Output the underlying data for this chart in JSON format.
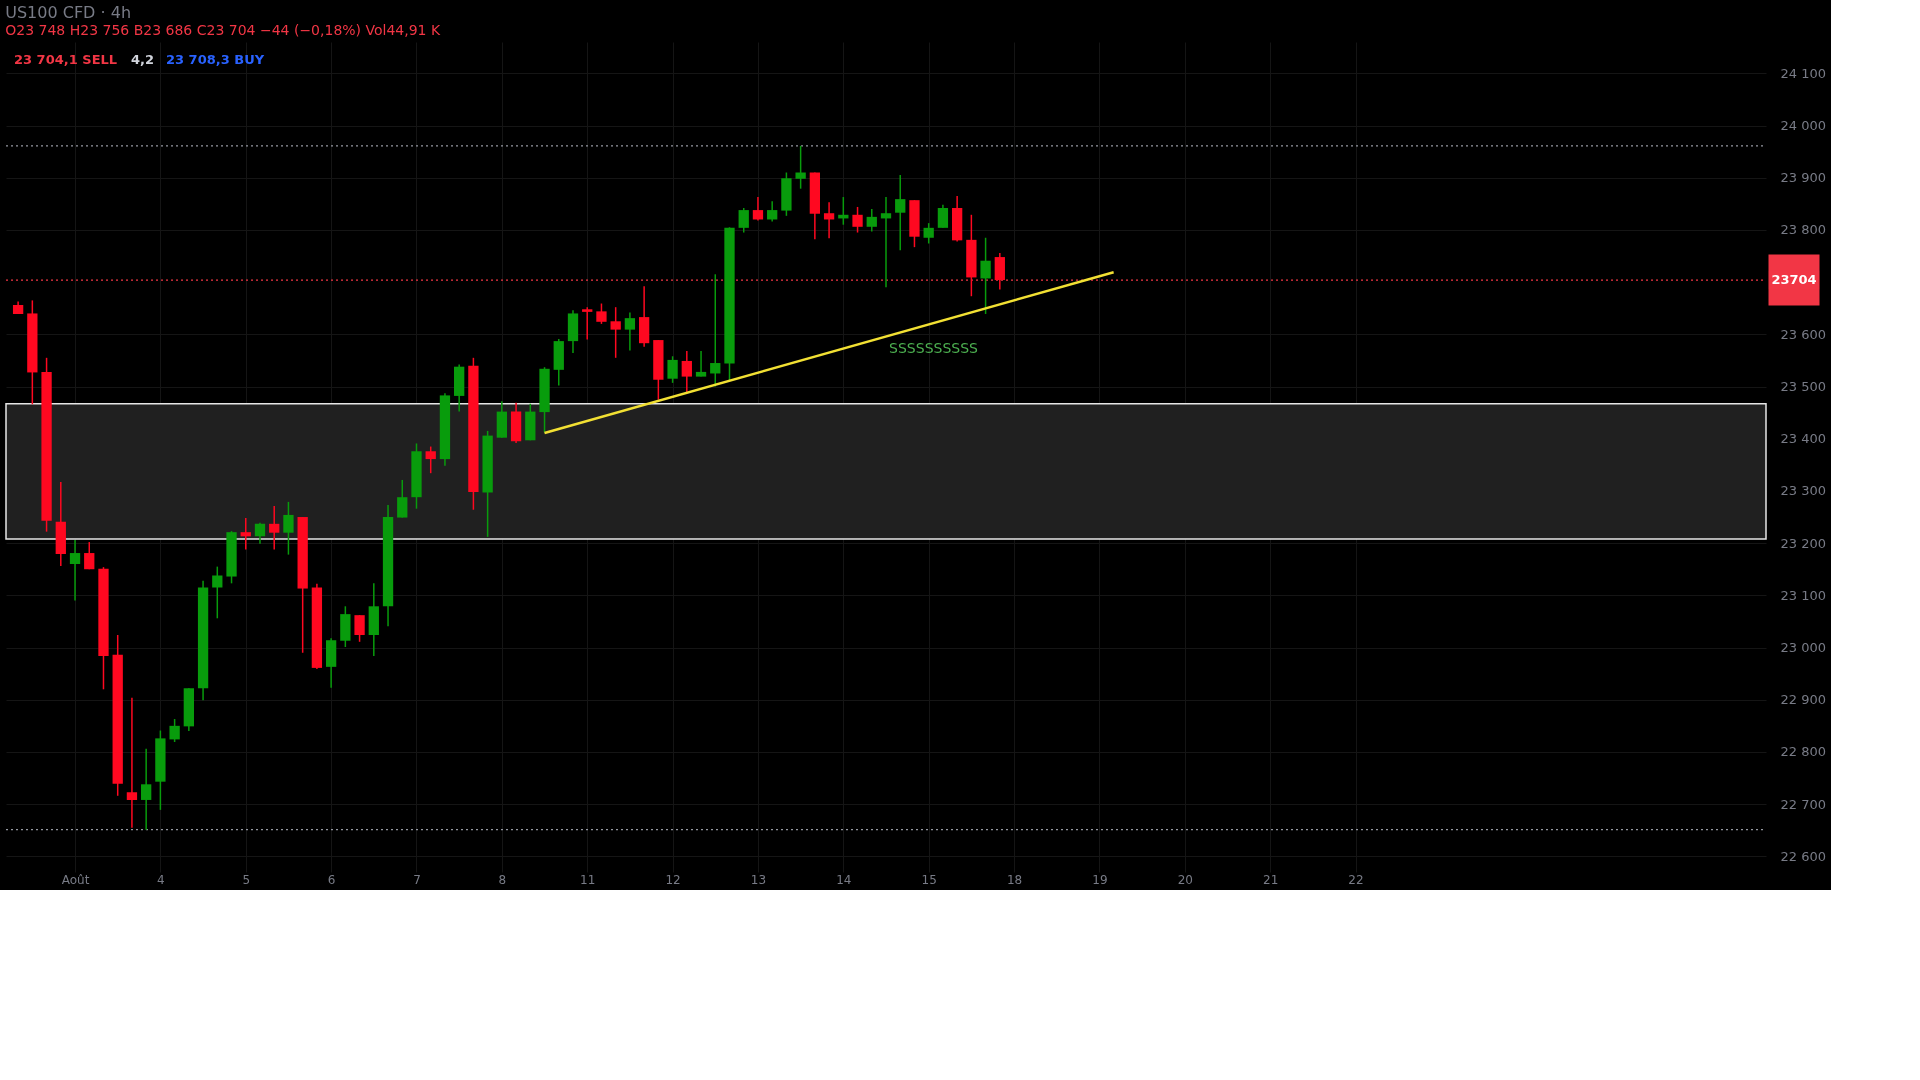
{
  "chart_data": {
    "type": "candlestick",
    "title": "US100 CFD · 4h",
    "subtitle": "O23 748  H23 756  B23 686  C23 704  −44 (−0,18%)  Vol44,91 K",
    "categories": [
      null,
      null,
      null,
      null,
      "Août",
      null,
      null,
      null,
      null,
      null,
      "4",
      null,
      null,
      null,
      null,
      null,
      "5",
      null,
      null,
      null,
      null,
      null,
      "6",
      null,
      null,
      null,
      null,
      null,
      "7",
      null,
      null,
      null,
      null,
      null,
      "8",
      null,
      null,
      null,
      null,
      null,
      "11",
      null,
      null,
      null,
      null,
      null,
      "12",
      null,
      null,
      null,
      null,
      null,
      "13",
      null,
      null,
      null,
      null,
      null,
      "14",
      null,
      null,
      null,
      null,
      null,
      "15",
      null,
      null,
      null,
      null,
      null,
      "18",
      null,
      null,
      null,
      null,
      null,
      "19",
      null,
      null,
      null,
      null,
      null,
      "20",
      null,
      null,
      null,
      null,
      null,
      "21",
      null,
      null,
      null,
      null,
      null,
      "22",
      null,
      null,
      null,
      null,
      null,
      null,
      null,
      null,
      null,
      null,
      null,
      null,
      null,
      null,
      null,
      null,
      null,
      null,
      null,
      null,
      null,
      null,
      null,
      null,
      null,
      null,
      null,
      null
    ],
    "ohlc": [
      [
        23656,
        23663,
        23639,
        23639
      ],
      [
        23640,
        23665,
        23466,
        23527
      ],
      [
        23528,
        23555,
        23222,
        23243
      ],
      [
        23241,
        23317,
        23156,
        23179
      ],
      [
        23160,
        23206,
        23090,
        23181
      ],
      [
        23181,
        23202,
        23150,
        23150
      ],
      [
        23151,
        23154,
        22920,
        22984
      ],
      [
        22986,
        23024,
        22716,
        22739
      ],
      [
        22723,
        22904,
        22655,
        22708
      ],
      [
        22708,
        22806,
        22651,
        22738
      ],
      [
        22743,
        22841,
        22689,
        22826
      ],
      [
        22824,
        22863,
        22819,
        22850
      ],
      [
        22849,
        22922,
        22840,
        22922
      ],
      [
        22922,
        23128,
        22899,
        23115
      ],
      [
        23115,
        23155,
        23056,
        23138
      ],
      [
        23136,
        23223,
        23123,
        23221
      ],
      [
        23221,
        23248,
        23188,
        23213
      ],
      [
        23213,
        23239,
        23199,
        23237
      ],
      [
        23237,
        23271,
        23188,
        23220
      ],
      [
        23220,
        23279,
        23178,
        23254
      ],
      [
        23250,
        23250,
        22990,
        23113
      ],
      [
        23115,
        23122,
        22959,
        22961
      ],
      [
        22963,
        23018,
        22923,
        23014
      ],
      [
        23013,
        23079,
        23001,
        23064
      ],
      [
        23062,
        23062,
        23011,
        23024
      ],
      [
        23024,
        23123,
        22984,
        23079
      ],
      [
        23079,
        23273,
        23041,
        23250
      ],
      [
        23249,
        23321,
        23249,
        23288
      ],
      [
        23288,
        23391,
        23266,
        23376
      ],
      [
        23376,
        23385,
        23334,
        23361
      ],
      [
        23361,
        23487,
        23348,
        23483
      ],
      [
        23482,
        23542,
        23452,
        23538
      ],
      [
        23540,
        23555,
        23264,
        23298
      ],
      [
        23297,
        23415,
        23212,
        23406
      ],
      [
        23402,
        23472,
        23402,
        23452
      ],
      [
        23452,
        23469,
        23392,
        23395
      ],
      [
        23397,
        23467,
        23397,
        23452
      ],
      [
        23451,
        23537,
        23412,
        23534
      ],
      [
        23532,
        23591,
        23502,
        23587
      ],
      [
        23587,
        23646,
        23564,
        23640
      ],
      [
        23648,
        23652,
        23590,
        23643
      ],
      [
        23644,
        23659,
        23620,
        23624
      ],
      [
        23625,
        23652,
        23555,
        23609
      ],
      [
        23609,
        23642,
        23569,
        23631
      ],
      [
        23633,
        23692,
        23576,
        23583
      ],
      [
        23589,
        23589,
        23475,
        23513
      ],
      [
        23515,
        23558,
        23507,
        23551
      ],
      [
        23549,
        23568,
        23487,
        23519
      ],
      [
        23519,
        23568,
        23519,
        23528
      ],
      [
        23525,
        23715,
        23500,
        23545
      ],
      [
        23544,
        23805,
        23512,
        23804
      ],
      [
        23804,
        23842,
        23795,
        23838
      ],
      [
        23838,
        23863,
        23818,
        23820
      ],
      [
        23820,
        23855,
        23816,
        23838
      ],
      [
        23837,
        23910,
        23827,
        23899
      ],
      [
        23898,
        23961,
        23879,
        23910
      ],
      [
        23910,
        23910,
        23782,
        23831
      ],
      [
        23832,
        23853,
        23784,
        23820
      ],
      [
        23822,
        23863,
        23810,
        23829
      ],
      [
        23829,
        23844,
        23795,
        23806
      ],
      [
        23806,
        23840,
        23797,
        23825
      ],
      [
        23822,
        23863,
        23690,
        23832
      ],
      [
        23833,
        23905,
        23761,
        23859
      ],
      [
        23857,
        23857,
        23767,
        23787
      ],
      [
        23785,
        23813,
        23774,
        23804
      ],
      [
        23804,
        23848,
        23804,
        23842
      ],
      [
        23842,
        23865,
        23778,
        23780
      ],
      [
        23781,
        23829,
        23673,
        23709
      ],
      [
        23707,
        23785,
        23639,
        23741
      ],
      [
        23748,
        23756,
        23686,
        23704
      ],
      null,
      null,
      null,
      null,
      null,
      null,
      null,
      null,
      null,
      null,
      null,
      null,
      null,
      null,
      null,
      null,
      null,
      null,
      null,
      null,
      null,
      null,
      null,
      null,
      null,
      null,
      null,
      null,
      null,
      null,
      null,
      null,
      null,
      null,
      null,
      null,
      null,
      null,
      null,
      null,
      null,
      null,
      null,
      null,
      null,
      null,
      null,
      null,
      null,
      null,
      null,
      null,
      null
    ],
    "colors": [
      "#ff0820",
      "#ff0820",
      "#ff0820",
      "#ff0820",
      "#089c0c",
      "#ff0820",
      "#ff0820",
      "#ff0820",
      "#ff0820",
      "#089c0c",
      "#089c0c",
      "#089c0c",
      "#089c0c",
      "#089c0c",
      "#089c0c",
      "#089c0c",
      "#ff0820",
      "#089c0c",
      "#ff0820",
      "#089c0c",
      "#ff0820",
      "#ff0820",
      "#089c0c",
      "#089c0c",
      "#ff0820",
      "#089c0c",
      "#089c0c",
      "#089c0c",
      "#089c0c",
      "#ff0820",
      "#089c0c",
      "#089c0c",
      "#ff0820",
      "#089c0c",
      "#089c0c",
      "#ff0820",
      "#089c0c",
      "#089c0c",
      "#089c0c",
      "#089c0c",
      "#ff0820",
      "#ff0820",
      "#ff0820",
      "#089c0c",
      "#ff0820",
      "#ff0820",
      "#089c0c",
      "#ff0820",
      "#089c0c",
      "#089c0c",
      "#089c0c",
      "#089c0c",
      "#ff0820",
      "#089c0c",
      "#089c0c",
      "#089c0c",
      "#ff0820",
      "#ff0820",
      "#089c0c",
      "#ff0820",
      "#089c0c",
      "#089c0c",
      "#089c0c",
      "#ff0820",
      "#089c0c",
      "#089c0c",
      "#ff0820",
      "#ff0820",
      "#089c0c",
      "#ff0820",
      null,
      null,
      null,
      null,
      null,
      null,
      null,
      null,
      null,
      null,
      null,
      null,
      null,
      null,
      null,
      null,
      null,
      null,
      null,
      null,
      null,
      null,
      null,
      null,
      null,
      null,
      null,
      null,
      null,
      null,
      null,
      null,
      null,
      null,
      null,
      null,
      null,
      null,
      null,
      null,
      null,
      null,
      null,
      null,
      null,
      null,
      null,
      null,
      null,
      null,
      null,
      null,
      null
    ],
    "series": [
      {
        "type": "line",
        "values": [
          null,
          null,
          null,
          null,
          null,
          null,
          null,
          null,
          null,
          null,
          null,
          null,
          null,
          null,
          null,
          null,
          null,
          null,
          null,
          null,
          null,
          null,
          null,
          null,
          null,
          null,
          null,
          null,
          null,
          null,
          null,
          null,
          null,
          null,
          null,
          null,
          null,
          23411,
          null,
          null,
          null,
          null,
          null,
          null,
          null,
          null,
          null,
          null,
          null,
          null,
          null,
          null,
          null,
          null,
          null,
          null,
          null,
          null,
          null,
          null,
          null,
          null,
          null,
          null,
          null,
          null,
          null,
          null,
          null,
          null,
          null,
          null,
          null,
          null,
          null,
          null,
          null,
          23719,
          null,
          null,
          null,
          null,
          null,
          null,
          null,
          null,
          null,
          null,
          null,
          null,
          null,
          null,
          null,
          null,
          null,
          null,
          null,
          null,
          null,
          null,
          null,
          null,
          null,
          null,
          null,
          null,
          null,
          null,
          null,
          null,
          null,
          null,
          null,
          null,
          null,
          null,
          null,
          null,
          null,
          null,
          null,
          null,
          null
        ],
        "color": "#f2e033"
      }
    ],
    "ylim": [
      22570,
      24160
    ],
    "yticks": [
      {
        "value": 22600,
        "label": "22 600"
      },
      {
        "value": 22700,
        "label": "22 700"
      },
      {
        "value": 22800,
        "label": "22 800"
      },
      {
        "value": 22900,
        "label": "22 900"
      },
      {
        "value": 23000,
        "label": "23 000"
      },
      {
        "value": 23100,
        "label": "23 100"
      },
      {
        "value": 23200,
        "label": "23 200"
      },
      {
        "value": 23300,
        "label": "23 300"
      },
      {
        "value": 23400,
        "label": "23 400"
      },
      {
        "value": 23500,
        "label": "23 500"
      },
      {
        "value": 23600,
        "label": "23 600"
      },
      {
        "value": 23800,
        "label": "23 800"
      },
      {
        "value": 23900,
        "label": "23 900"
      },
      {
        "value": 24000,
        "label": "24 000"
      },
      {
        "value": 24100,
        "label": "24 100"
      }
    ],
    "ref_lines": [
      {
        "axis": "y",
        "value": 23704,
        "label": "23704",
        "color": "#f23645",
        "line_style": "dotted"
      },
      {
        "axis": "y",
        "value": 23961,
        "color": "#9598a1",
        "line_style": "dotted"
      },
      {
        "axis": "y",
        "value": 22651,
        "color": "#9598a1",
        "line_style": "dotted"
      }
    ],
    "bands": [
      {
        "axis": "y",
        "from": 23208,
        "to": 23467,
        "color": "#202020"
      }
    ],
    "annotations": [
      "23 704,1 SELL",
      "4,2",
      "23 708,3 BUY",
      "SSSSSSSSSS"
    ],
    "grid": true
  }
}
